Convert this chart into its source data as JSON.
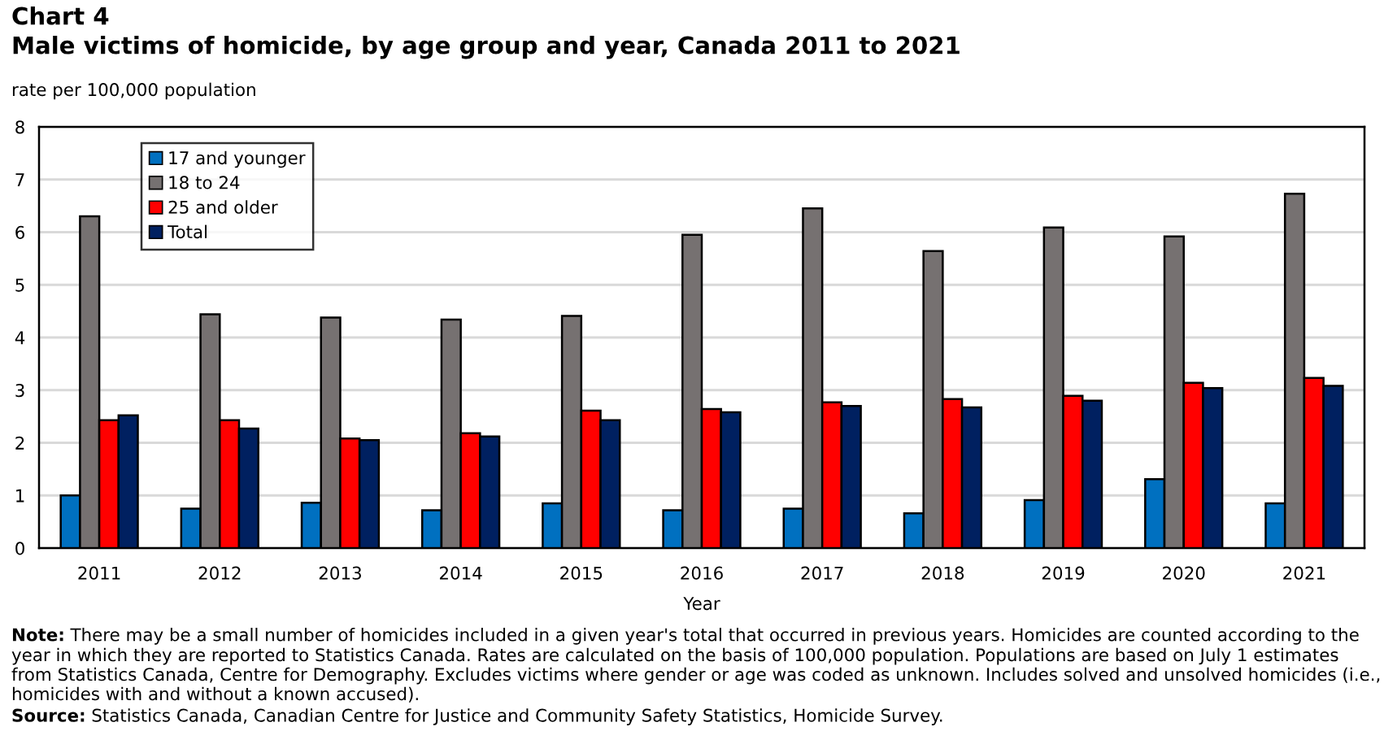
{
  "chart_data": {
    "type": "bar",
    "title": "Chart 4",
    "subtitle": "Male victims of homicide, by age group and year, Canada 2011 to 2021",
    "ylabel": "rate per 100,000 population",
    "xlabel": "Year",
    "categories": [
      "2011",
      "2012",
      "2013",
      "2014",
      "2015",
      "2016",
      "2017",
      "2018",
      "2019",
      "2020",
      "2021"
    ],
    "series": [
      {
        "name": "17 and younger",
        "color": "#0070c0",
        "values": [
          1.0,
          0.75,
          0.86,
          0.72,
          0.85,
          0.72,
          0.75,
          0.66,
          0.91,
          1.31,
          0.85
        ]
      },
      {
        "name": "18 to 24",
        "color": "#767171",
        "values": [
          6.3,
          4.44,
          4.38,
          4.34,
          4.41,
          5.95,
          6.45,
          5.64,
          6.09,
          5.92,
          6.73
        ]
      },
      {
        "name": "25 and older",
        "color": "#ff0000",
        "values": [
          2.43,
          2.43,
          2.08,
          2.18,
          2.61,
          2.64,
          2.77,
          2.83,
          2.89,
          3.14,
          3.23
        ]
      },
      {
        "name": "Total",
        "color": "#002060",
        "values": [
          2.52,
          2.27,
          2.05,
          2.12,
          2.43,
          2.58,
          2.7,
          2.67,
          2.8,
          3.04,
          3.08
        ]
      }
    ],
    "ylim": [
      0,
      8
    ],
    "yticks": [
      0,
      1,
      2,
      3,
      4,
      5,
      6,
      7,
      8
    ],
    "grid": "y",
    "legend": "top left",
    "annotations": [
      "Note: There may be a small number of homicides included in a given year's total that occurred in previous years. Homicides are counted according to the year in which they are reported to Statistics Canada. Rates are calculated on the basis of 100,000 population. Populations are based on July 1 estimates from Statistics Canada, Centre for Demography. Excludes victims where gender or age was coded as unknown. Includes solved and unsolved homicides (i.e., homicides with and without a known accused).",
      "Source: Statistics Canada, Canadian Centre for Justice and Community Safety Statistics, Homicide Survey."
    ]
  }
}
